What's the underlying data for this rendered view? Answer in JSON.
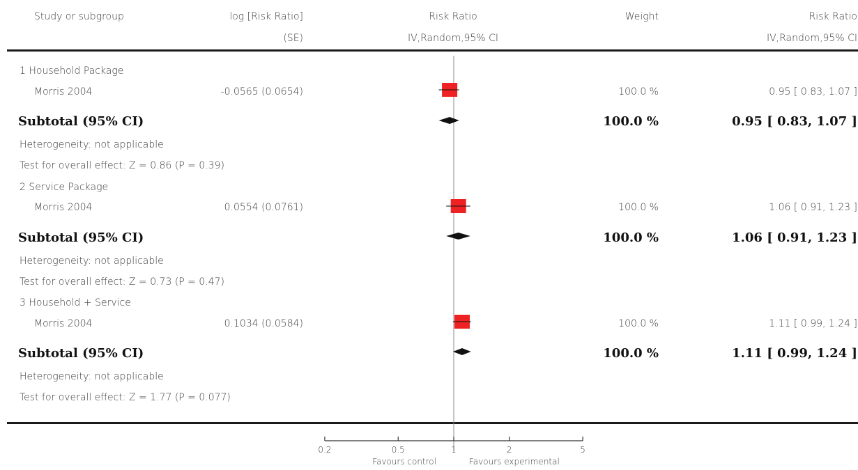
{
  "header": {
    "study": "Study or subgroup",
    "logrr_line1": "log [Risk Ratio]",
    "logrr_line2": "(SE)",
    "rr_plot_line1": "Risk Ratio",
    "rr_plot_line2": "IV,Random,95% CI",
    "weight": "Weight",
    "rr_line1": "Risk Ratio",
    "rr_line2": "IV,Random,95% CI"
  },
  "groups": [
    {
      "title": "1 Household Package",
      "study": "Morris 2004",
      "logrr_se": "-0.0565 (0.0654)",
      "weight": "100.0 %",
      "rr_ci": "0.95 [ 0.83, 1.07 ]",
      "subtotal_label": "Subtotal (95% CI)",
      "subtotal_weight": "100.0 %",
      "subtotal_rr": "0.95 [ 0.83, 1.07 ]",
      "heterogeneity": "Heterogeneity: not applicable",
      "overall": "Test for overall effect: Z = 0.86 (P = 0.39)"
    },
    {
      "title": "2 Service Package",
      "study": "Morris 2004",
      "logrr_se": "0.0554 (0.0761)",
      "weight": "100.0 %",
      "rr_ci": "1.06 [ 0.91, 1.23 ]",
      "subtotal_label": "Subtotal (95% CI)",
      "subtotal_weight": "100.0 %",
      "subtotal_rr": "1.06 [ 0.91, 1.23 ]",
      "heterogeneity": "Heterogeneity: not applicable",
      "overall": "Test for overall effect: Z = 0.73 (P = 0.47)"
    },
    {
      "title": "3 Household + Service",
      "study": "Morris 2004",
      "logrr_se": "0.1034 (0.0584)",
      "weight": "100.0 %",
      "rr_ci": "1.11 [ 0.99, 1.24 ]",
      "subtotal_label": "Subtotal (95% CI)",
      "subtotal_weight": "100.0 %",
      "subtotal_rr": "1.11 [ 0.99, 1.24 ]",
      "heterogeneity": "Heterogeneity: not applicable",
      "overall": "Test for overall effect: Z = 1.77 (P = 0.077)"
    }
  ],
  "axis": {
    "ticks": [
      "0.2",
      "0.5",
      "1",
      "2",
      "5"
    ],
    "favours_left": "Favours control",
    "favours_right": "Favours experimental"
  },
  "colors": {
    "study_box": "#ee2222",
    "diamond": "#111111",
    "null_line": "#888888"
  },
  "chart_data": {
    "type": "forest",
    "scale": "log",
    "xlim": [
      0.2,
      5
    ],
    "null_value": 1,
    "tick_values": [
      0.2,
      0.5,
      1,
      2,
      5
    ],
    "studies": [
      {
        "group": "1 Household Package",
        "name": "Morris 2004",
        "rr": 0.95,
        "ci": [
          0.83,
          1.07
        ],
        "weight": 100.0
      },
      {
        "group": "2 Service Package",
        "name": "Morris 2004",
        "rr": 1.06,
        "ci": [
          0.91,
          1.23
        ],
        "weight": 100.0
      },
      {
        "group": "3 Household + Service",
        "name": "Morris 2004",
        "rr": 1.11,
        "ci": [
          0.99,
          1.24
        ],
        "weight": 100.0
      }
    ],
    "subtotals": [
      {
        "group": "1 Household Package",
        "rr": 0.95,
        "ci": [
          0.83,
          1.07
        ]
      },
      {
        "group": "2 Service Package",
        "rr": 1.06,
        "ci": [
          0.91,
          1.23
        ]
      },
      {
        "group": "3 Household + Service",
        "rr": 1.11,
        "ci": [
          0.99,
          1.24
        ]
      }
    ]
  }
}
